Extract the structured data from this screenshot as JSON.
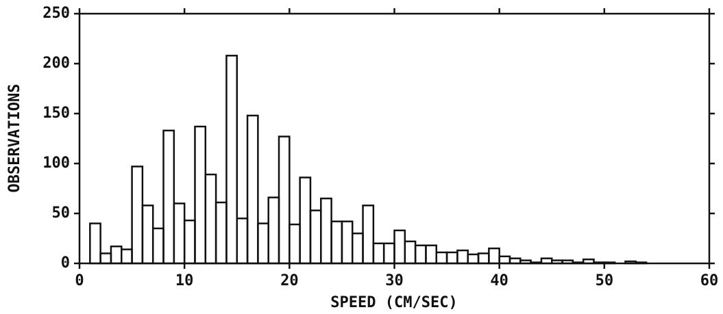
{
  "chart_data": {
    "type": "histogram",
    "xlabel": "SPEED (CM/SEC)",
    "ylabel": "OBSERVATIONS",
    "bins": [
      1,
      2,
      3,
      4,
      5,
      6,
      7,
      8,
      9,
      10,
      11,
      12,
      13,
      14,
      15,
      16,
      17,
      18,
      19,
      20,
      21,
      22,
      23,
      24,
      25,
      26,
      27,
      28,
      29,
      30,
      31,
      32,
      33,
      34,
      35,
      36,
      37,
      38,
      39,
      40,
      41,
      42,
      43,
      44,
      45,
      46,
      47,
      48,
      49,
      50,
      51,
      52,
      53,
      54,
      55,
      56,
      57,
      58,
      59,
      60
    ],
    "values": [
      40,
      10,
      17,
      14,
      97,
      58,
      35,
      133,
      60,
      43,
      137,
      89,
      61,
      208,
      45,
      148,
      40,
      66,
      127,
      39,
      86,
      53,
      65,
      42,
      42,
      30,
      58,
      20,
      20,
      33,
      22,
      18,
      18,
      11,
      11,
      13,
      9,
      10,
      15,
      7,
      5,
      3,
      1,
      5,
      3,
      3,
      1,
      4,
      1,
      1,
      0,
      2,
      1,
      0,
      0,
      0,
      0,
      0,
      0
    ],
    "color": "#111111",
    "xlim": [
      0,
      60
    ],
    "xticks": [
      0,
      10,
      20,
      30,
      40,
      50,
      60
    ],
    "ylim": [
      0,
      250
    ],
    "yticks": [
      0,
      50,
      100,
      150,
      200,
      250
    ],
    "grid": false
  }
}
